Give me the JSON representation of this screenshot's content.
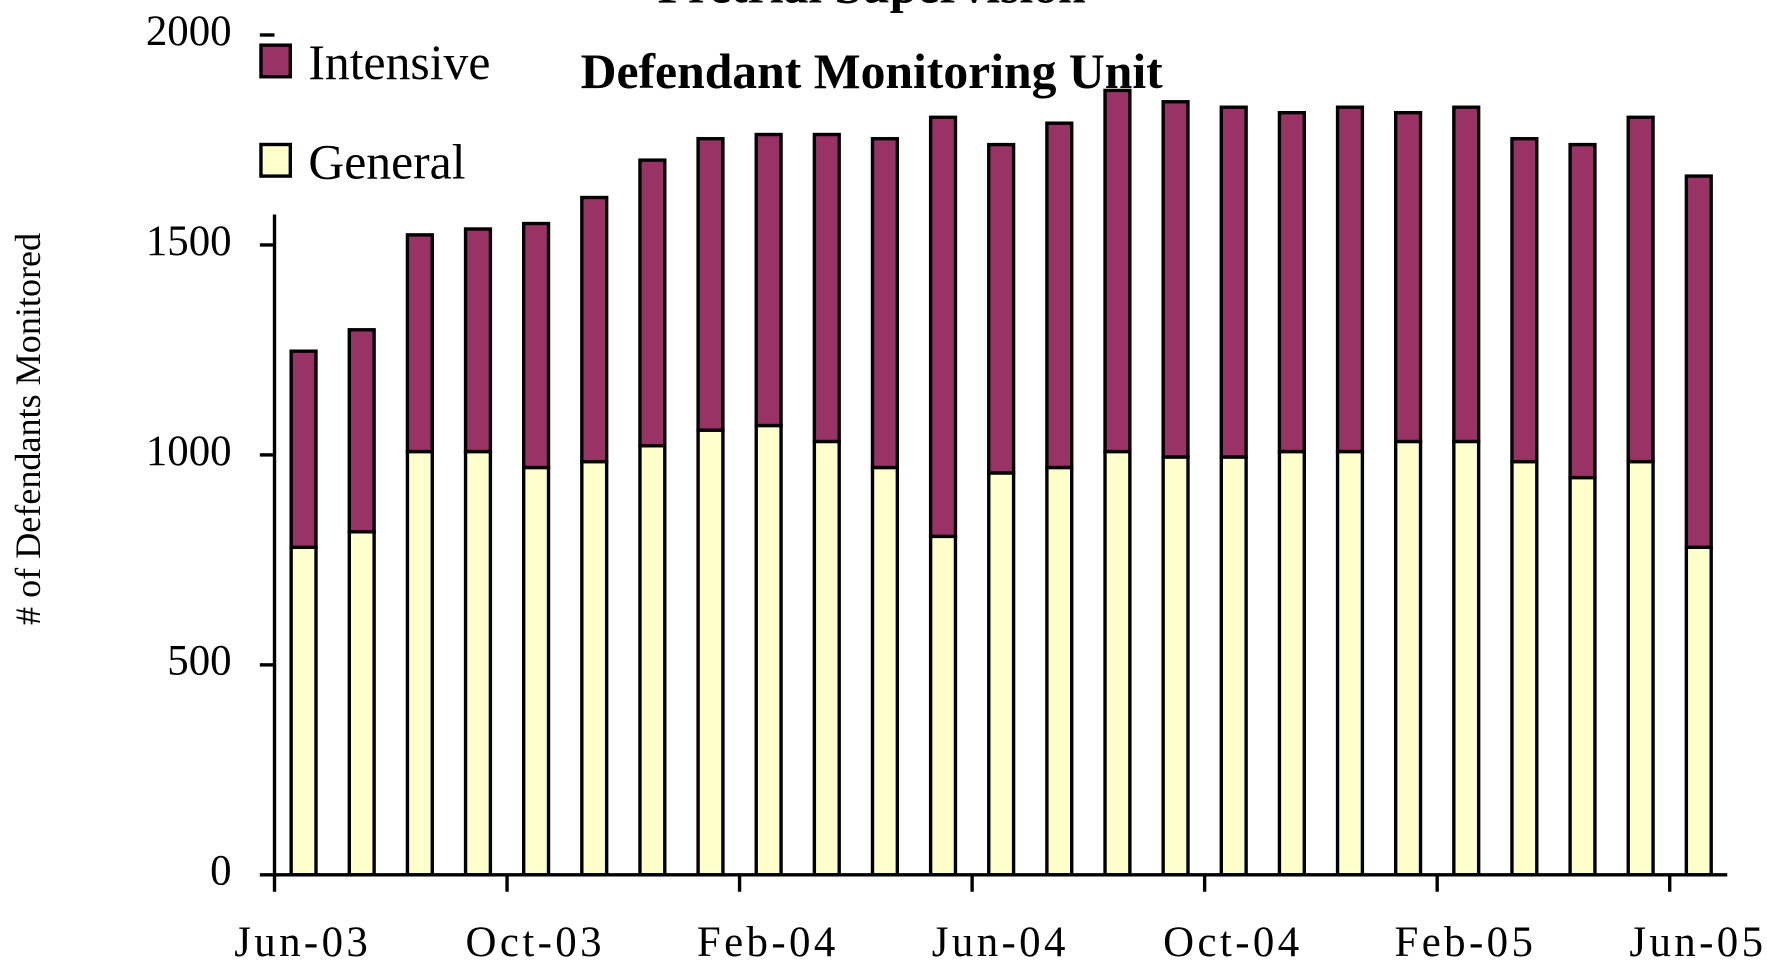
{
  "chart_data": {
    "type": "stacked_bar",
    "title": "Pretrial Supervision",
    "subtitle": "Defendant Monitoring Unit",
    "y_label": "# of Defendants Monitored",
    "categories": [
      "Jun-03",
      null,
      null,
      null,
      "Oct-03",
      null,
      null,
      null,
      "Feb-04",
      null,
      null,
      null,
      "Jun-04",
      null,
      null,
      null,
      "Oct-04",
      null,
      null,
      null,
      "Feb-05",
      null,
      null,
      null,
      "Jun-05"
    ],
    "series": [
      {
        "name": "General",
        "color": "#ffffcc",
        "values": [
          780,
          817,
          1008,
          1008,
          970,
          984,
          1022,
          1059,
          1070,
          1032,
          970,
          806,
          957,
          970,
          1008,
          995,
          995,
          1008,
          1008,
          1032,
          1032,
          984,
          946,
          984,
          780
        ]
      },
      {
        "name": "Intensive",
        "color": "#993366",
        "values": [
          467,
          481,
          516,
          530,
          581,
          629,
          680,
          694,
          693,
          731,
          783,
          998,
          782,
          820,
          860,
          846,
          833,
          807,
          820,
          783,
          796,
          769,
          793,
          820,
          884
        ]
      }
    ],
    "ylim": [
      0,
      2000
    ],
    "yticks": [
      0,
      500,
      1000,
      1500,
      2000
    ],
    "legend": "upper left"
  }
}
